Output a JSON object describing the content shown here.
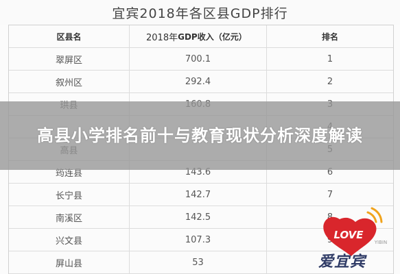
{
  "title": "宜宾2018年各区县GDP排行",
  "headers": {
    "district": "区县名",
    "gdp_prefix": "2018年",
    "gdp_bold": "GDP收入（亿元）",
    "rank": "排名"
  },
  "rows": [
    {
      "district": "翠屏区",
      "gdp": "700.1",
      "rank": "1"
    },
    {
      "district": "叙州区",
      "gdp": "292.4",
      "rank": "2"
    },
    {
      "district": "珙县",
      "gdp": "160.8",
      "rank": "3"
    },
    {
      "district": "",
      "gdp": "",
      "rank": "4"
    },
    {
      "district": "高县",
      "gdp": "",
      "rank": "5"
    },
    {
      "district": "筠连县",
      "gdp": "143.6",
      "rank": "6"
    },
    {
      "district": "长宁县",
      "gdp": "142.7",
      "rank": "7"
    },
    {
      "district": "南溪区",
      "gdp": "142.5",
      "rank": "8"
    },
    {
      "district": "兴文县",
      "gdp": "107.3",
      "rank": "9"
    },
    {
      "district": "屏山县",
      "gdp": "53",
      "rank": ""
    }
  ],
  "banner": {
    "text": "高县小学排名前十与教育现状分析深度解读"
  },
  "watermark": {
    "badge": "LOVE",
    "small": "YIBIN",
    "brand": "爱宜宾"
  },
  "colors": {
    "heart": "#d9262c",
    "brand": "#2f3b66",
    "banner": "#969696"
  }
}
